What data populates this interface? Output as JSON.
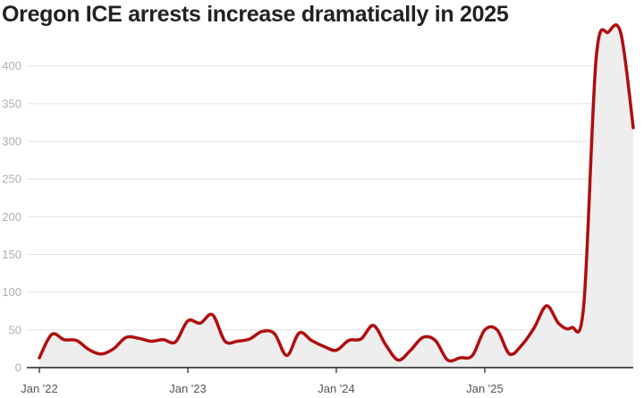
{
  "title": "Oregon ICE arrests increase dramatically in 2025",
  "colors": {
    "line": "#b00d0d",
    "area": "#eeeeee",
    "grid": "#e2e2e2",
    "axis": "#222222"
  },
  "chart_data": {
    "type": "area",
    "title": "Oregon ICE arrests increase dramatically in 2025",
    "xlabel": "",
    "ylabel": "",
    "ylim": [
      0,
      440
    ],
    "yticks": [
      0,
      50,
      100,
      150,
      200,
      250,
      300,
      350,
      400
    ],
    "ytick_labels": [
      "0",
      "50",
      "100",
      "150",
      "200",
      "250",
      "300",
      "350",
      "400"
    ],
    "xticks": [
      {
        "index": 0,
        "label": "Jan '22"
      },
      {
        "index": 12,
        "label": "Jan '23"
      },
      {
        "index": 24,
        "label": "Jan '24"
      },
      {
        "index": 36,
        "label": "Jan '25"
      }
    ],
    "series": [
      {
        "name": "ICE arrests",
        "x": [
          "Jan 2022",
          "Feb 2022",
          "Mar 2022",
          "Apr 2022",
          "May 2022",
          "Jun 2022",
          "Jul 2022",
          "Aug 2022",
          "Sep 2022",
          "Oct 2022",
          "Nov 2022",
          "Dec 2022",
          "Jan 2023",
          "Feb 2023",
          "Mar 2023",
          "Apr 2023",
          "May 2023",
          "Jun 2023",
          "Jul 2023",
          "Aug 2023",
          "Sep 2023",
          "Oct 2023",
          "Nov 2023",
          "Dec 2023",
          "Jan 2024",
          "Feb 2024",
          "Mar 2024",
          "Apr 2024",
          "May 2024",
          "Jun 2024",
          "Jul 2024",
          "Aug 2024",
          "Sep 2024",
          "Oct 2024",
          "Nov 2024",
          "Dec 2024",
          "Jan 2025",
          "Feb 2025",
          "Mar 2025",
          "Apr 2025",
          "May 2025",
          "Jun 2025",
          "Jul 2025",
          "Aug 2025",
          "Sep 2025",
          "Oct 2025",
          "Nov 2025",
          "Dec 2025",
          "Jan 2026"
        ],
        "values": [
          13,
          44,
          37,
          36,
          24,
          18,
          25,
          40,
          39,
          35,
          37,
          34,
          62,
          59,
          70,
          35,
          35,
          38,
          48,
          45,
          16,
          46,
          36,
          28,
          23,
          36,
          38,
          56,
          30,
          10,
          23,
          40,
          36,
          10,
          13,
          16,
          50,
          50,
          18,
          30,
          53,
          82,
          58,
          53,
          83,
          410,
          445,
          443,
          318
        ]
      }
    ]
  }
}
